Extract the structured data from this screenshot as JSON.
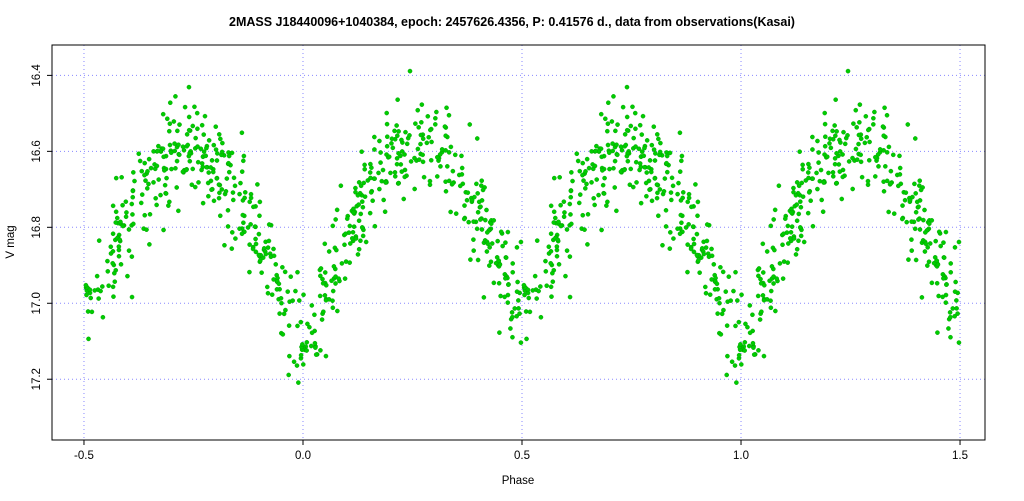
{
  "chart_data": {
    "type": "scatter",
    "title": "2MASS J18440096+1040384, epoch: 2457626.4356, P: 0.41576 d., data from observations(Kasai)",
    "xlabel": "Phase",
    "ylabel": "V mag",
    "x_range": [
      -0.573,
      1.557
    ],
    "y_axis_inverted": true,
    "y_top_mag": 16.32,
    "y_bottom_mag": 17.36,
    "x_ticks": {
      "values": [
        -0.5,
        0.0,
        0.5,
        1.0,
        1.5
      ],
      "labels": [
        "-0.5",
        "0.0",
        "0.5",
        "1.0",
        "1.5"
      ]
    },
    "y_ticks": {
      "values": [
        16.4,
        16.6,
        16.8,
        17.0,
        17.2
      ],
      "labels": [
        "16.4",
        "16.6",
        "16.8",
        "17.0",
        "17.2"
      ]
    },
    "grid": {
      "show": true,
      "color": "#8888ff",
      "style": "dotted"
    },
    "points": {
      "color": "#00cc00",
      "edge_color": "#009900",
      "radius": 2.1,
      "count_per_cycle": 680,
      "cycles_plotted": 2,
      "phase_offset_between_cycles": 1.0
    },
    "scatter_sigma_mag": 0.065,
    "outlier_fraction": 0.04,
    "outlier_extra_sigma": 0.09,
    "seed": 20457,
    "mean_curve": [
      [
        0.0,
        17.1
      ],
      [
        0.03,
        17.04
      ],
      [
        0.06,
        16.95
      ],
      [
        0.1,
        16.82
      ],
      [
        0.15,
        16.7
      ],
      [
        0.2,
        16.63
      ],
      [
        0.25,
        16.59
      ],
      [
        0.3,
        16.61
      ],
      [
        0.35,
        16.67
      ],
      [
        0.4,
        16.76
      ],
      [
        0.45,
        16.9
      ],
      [
        0.5,
        17.0
      ],
      [
        0.55,
        16.9
      ],
      [
        0.6,
        16.76
      ],
      [
        0.65,
        16.67
      ],
      [
        0.7,
        16.61
      ],
      [
        0.75,
        16.59
      ],
      [
        0.8,
        16.63
      ],
      [
        0.85,
        16.7
      ],
      [
        0.9,
        16.82
      ],
      [
        0.94,
        16.95
      ],
      [
        0.97,
        17.04
      ],
      [
        1.0,
        17.1
      ]
    ]
  }
}
